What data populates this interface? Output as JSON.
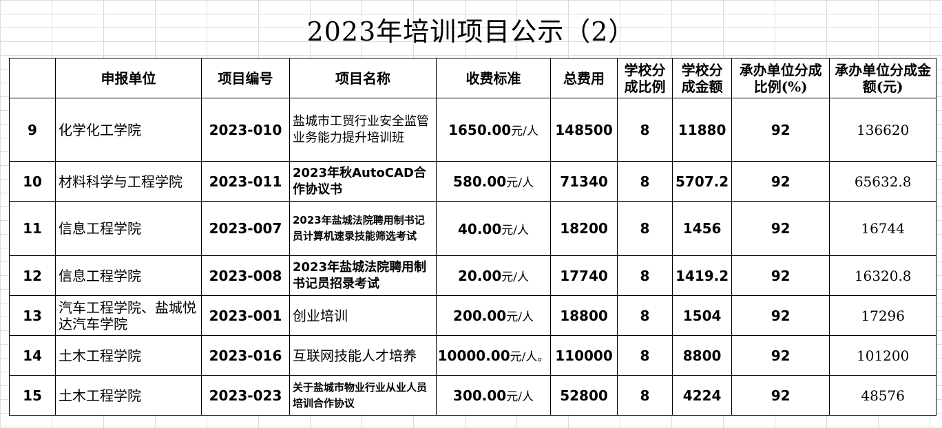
{
  "title": "2023年培训项目公示（2）",
  "headers": {
    "index": "",
    "unit": "申报单位",
    "code": "项目编号",
    "name": "项目名称",
    "fee": "收费标准",
    "total": "总费用",
    "school_ratio": "学校分成比例",
    "school_amount": "学校分成金额",
    "host_ratio": "承办单位分成比例(%)",
    "host_amount": "承办单位分成金额(元)"
  },
  "rows": [
    {
      "index": "9",
      "unit": "化学化工学院",
      "code": "2023-010",
      "name": "盐城市工贸行业安全监管业务能力提升培训班",
      "fee": "1650.00",
      "fee_unit": "元/人",
      "total": "148500",
      "school_ratio": "8",
      "school_amount": "11880",
      "host_ratio": "92",
      "host_amount": "136620"
    },
    {
      "index": "10",
      "unit": "材料科学与工程学院",
      "code": "2023-011",
      "name": "2023年秋AutoCAD合作协议书",
      "fee": "580.00",
      "fee_unit": "元/人",
      "total": "71340",
      "school_ratio": "8",
      "school_amount": "5707.2",
      "host_ratio": "92",
      "host_amount": "65632.8"
    },
    {
      "index": "11",
      "unit": "信息工程学院",
      "code": "2023-007",
      "name": "2023年盐城法院聘用制书记员计算机速录技能筛选考试",
      "fee": "40.00",
      "fee_unit": "元/人",
      "total": "18200",
      "school_ratio": "8",
      "school_amount": "1456",
      "host_ratio": "92",
      "host_amount": "16744"
    },
    {
      "index": "12",
      "unit": "信息工程学院",
      "code": "2023-008",
      "name": "2023年盐城法院聘用制书记员招录考试",
      "fee": "20.00",
      "fee_unit": "元/人",
      "total": "17740",
      "school_ratio": "8",
      "school_amount": "1419.2",
      "host_ratio": "92",
      "host_amount": "16320.8"
    },
    {
      "index": "13",
      "unit": "汽车工程学院、盐城悦达汽车学院",
      "code": "2023-001",
      "name": "创业培训",
      "fee": "200.00",
      "fee_unit": "元/人",
      "total": "18800",
      "school_ratio": "8",
      "school_amount": "1504",
      "host_ratio": "92",
      "host_amount": "17296"
    },
    {
      "index": "14",
      "unit": "土木工程学院",
      "code": "2023-016",
      "name": "互联网技能人才培养",
      "fee": "10000.00",
      "fee_unit": "元/人。",
      "total": "110000",
      "school_ratio": "8",
      "school_amount": "8800",
      "host_ratio": "92",
      "host_amount": "101200"
    },
    {
      "index": "15",
      "unit": "土木工程学院",
      "code": "2023-023",
      "name": "关于盐城市物业行业从业人员培训合作协议",
      "fee": "300.00",
      "fee_unit": "元/人",
      "total": "52800",
      "school_ratio": "8",
      "school_amount": "4224",
      "host_ratio": "92",
      "host_amount": "48576"
    }
  ]
}
